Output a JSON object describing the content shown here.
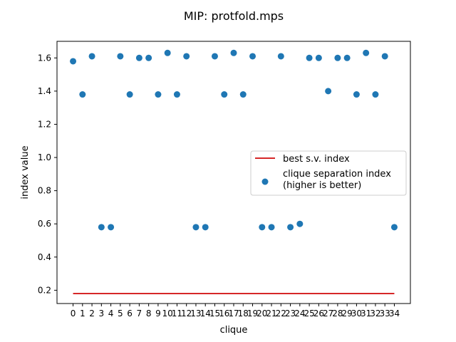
{
  "chart_data": {
    "type": "scatter",
    "title": "MIP: protfold.mps",
    "xlabel": "clique",
    "ylabel": "index value",
    "xlim": [
      -1.7,
      35.7
    ],
    "ylim": [
      0.12,
      1.7
    ],
    "x_ticks": [
      0,
      1,
      2,
      3,
      4,
      5,
      6,
      7,
      8,
      9,
      10,
      11,
      12,
      13,
      14,
      15,
      16,
      17,
      18,
      19,
      20,
      21,
      22,
      23,
      24,
      25,
      26,
      27,
      28,
      29,
      30,
      31,
      32,
      33,
      34
    ],
    "y_ticks": [
      0.2,
      0.4,
      0.6,
      0.8,
      1.0,
      1.2,
      1.4,
      1.6
    ],
    "y_tick_labels": [
      "0.2",
      "0.4",
      "0.6",
      "0.8",
      "1.0",
      "1.2",
      "1.4",
      "1.6"
    ],
    "grid": false,
    "legend_position": "center-right",
    "series": [
      {
        "name": "best s.v. index",
        "kind": "line",
        "color": "#d62728",
        "x": [
          0,
          34
        ],
        "y": [
          0.18,
          0.18
        ]
      },
      {
        "name": "clique separation index\n(higher is better)",
        "kind": "scatter",
        "color": "#1f77b4",
        "x": [
          0,
          1,
          2,
          3,
          4,
          5,
          6,
          7,
          8,
          9,
          10,
          11,
          12,
          13,
          14,
          15,
          16,
          17,
          18,
          19,
          20,
          21,
          22,
          23,
          24,
          25,
          26,
          27,
          28,
          29,
          30,
          31,
          32,
          33,
          34
        ],
        "y": [
          1.58,
          1.38,
          1.61,
          0.58,
          0.58,
          1.61,
          1.38,
          1.6,
          1.6,
          1.38,
          1.63,
          1.38,
          1.61,
          0.58,
          0.58,
          1.61,
          1.38,
          1.63,
          1.38,
          1.61,
          0.58,
          0.58,
          1.61,
          0.58,
          0.6,
          1.6,
          1.6,
          1.4,
          1.6,
          1.6,
          1.38,
          1.63,
          1.38,
          1.61,
          0.58
        ]
      }
    ]
  }
}
